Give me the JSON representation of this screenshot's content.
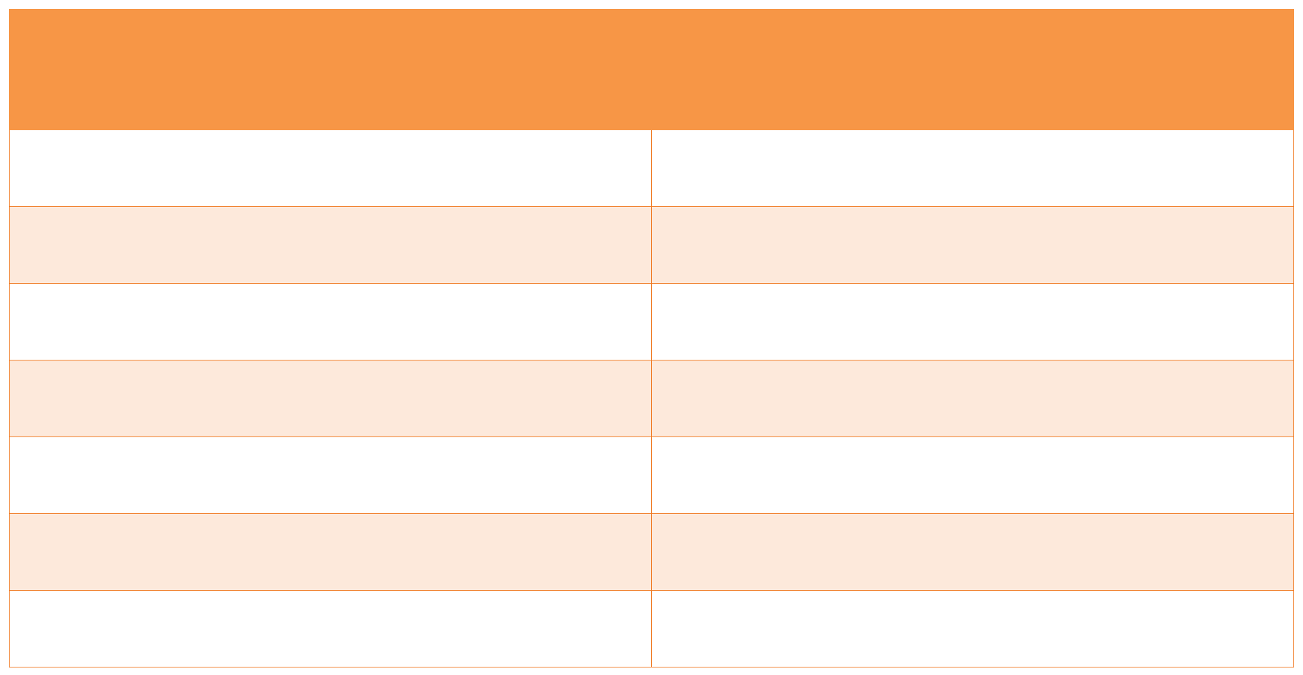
{
  "table": {
    "header": [
      "",
      ""
    ],
    "rows": [
      [
        "",
        ""
      ],
      [
        "",
        ""
      ],
      [
        "",
        ""
      ],
      [
        "",
        ""
      ],
      [
        "",
        ""
      ],
      [
        "",
        ""
      ],
      [
        "",
        ""
      ]
    ]
  },
  "colors": {
    "header_fill": "#f79646",
    "band_fill": "#fde9db",
    "border": "#f07a22"
  }
}
